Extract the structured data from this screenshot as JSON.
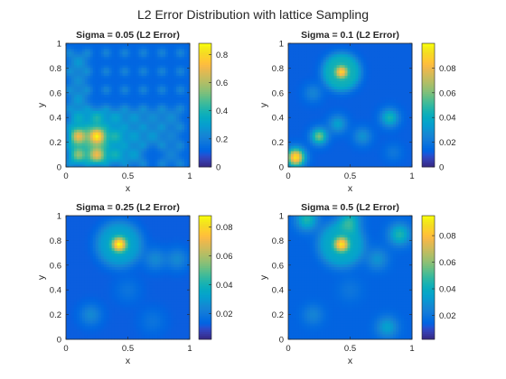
{
  "figure": {
    "title": "L2 Error Distribution with lattice Sampling"
  },
  "chart_data": [
    {
      "type": "heatmap",
      "title": "Sigma = 0.05 (L2 Error)",
      "xlabel": "x",
      "ylabel": "y",
      "xlim": [
        0,
        1
      ],
      "ylim": [
        0,
        1
      ],
      "x_ticks": [
        "0",
        "0.5",
        "1"
      ],
      "y_ticks": [
        "0",
        "0.2",
        "0.4",
        "0.6",
        "0.8",
        "1"
      ],
      "colorbar": {
        "min": 0,
        "max": 0.88,
        "ticks": [
          0,
          0.2,
          0.4,
          0.6,
          0.8
        ],
        "tick_labels": [
          "0",
          "0.2",
          "0.4",
          "0.6",
          "0.8"
        ]
      },
      "colormap": "parula",
      "background_value": 0.12,
      "features": [
        {
          "x": 0.1,
          "y": 0.25,
          "value": 0.7,
          "spread": 0.05
        },
        {
          "x": 0.25,
          "y": 0.25,
          "value": 0.85,
          "spread": 0.05
        },
        {
          "x": 0.1,
          "y": 0.1,
          "value": 0.55,
          "spread": 0.05
        },
        {
          "x": 0.25,
          "y": 0.1,
          "value": 0.7,
          "spread": 0.05
        },
        {
          "x": 0.1,
          "y": 0.4,
          "value": 0.35,
          "spread": 0.05
        },
        {
          "x": 0.25,
          "y": 0.4,
          "value": 0.4,
          "spread": 0.05
        },
        {
          "x": 0.4,
          "y": 0.25,
          "value": 0.4,
          "spread": 0.05
        },
        {
          "x": 0.4,
          "y": 0.1,
          "value": 0.38,
          "spread": 0.05
        },
        {
          "x": 0.55,
          "y": 0.25,
          "value": 0.3,
          "spread": 0.05
        },
        {
          "x": 0.55,
          "y": 0.1,
          "value": 0.3,
          "spread": 0.05
        },
        {
          "x": 0.7,
          "y": 0.25,
          "value": 0.28,
          "spread": 0.05
        },
        {
          "x": 0.7,
          "y": 0.4,
          "value": 0.25,
          "spread": 0.05
        },
        {
          "x": 0.85,
          "y": 0.4,
          "value": 0.25,
          "spread": 0.05
        },
        {
          "x": 0.55,
          "y": 0.4,
          "value": 0.28,
          "spread": 0.05
        },
        {
          "x": 0.4,
          "y": 0.4,
          "value": 0.32,
          "spread": 0.05
        },
        {
          "x": 0.1,
          "y": 0.55,
          "value": 0.28,
          "spread": 0.05
        },
        {
          "x": 0.1,
          "y": 0.85,
          "value": 0.28,
          "spread": 0.05
        },
        {
          "x": 0.1,
          "y": 0.7,
          "value": 0.25,
          "spread": 0.05
        },
        {
          "x": 0.85,
          "y": 0.25,
          "value": 0.22,
          "spread": 0.05
        },
        {
          "x": 0.85,
          "y": 0.1,
          "value": 0.22,
          "spread": 0.05
        }
      ],
      "lattice_spacing": 0.15,
      "lattice_value": 0.22
    },
    {
      "type": "heatmap",
      "title": "Sigma = 0.1 (L2 Error)",
      "xlabel": "x",
      "ylabel": "y",
      "xlim": [
        0,
        1
      ],
      "ylim": [
        0,
        1
      ],
      "x_ticks": [
        "0",
        "0.5",
        "1"
      ],
      "y_ticks": [
        "0",
        "0.2",
        "0.4",
        "0.6",
        "0.8",
        "1"
      ],
      "colorbar": {
        "min": 0,
        "max": 0.1,
        "ticks": [
          0,
          0.02,
          0.04,
          0.06,
          0.08
        ],
        "tick_labels": [
          "0",
          "0.02",
          "0.04",
          "0.06",
          "0.08"
        ]
      },
      "colormap": "parula",
      "background_value": 0.012,
      "features": [
        {
          "x": 0.06,
          "y": 0.08,
          "value": 0.095,
          "spread": 0.05
        },
        {
          "x": 0.43,
          "y": 0.77,
          "value": 0.09,
          "spread": 0.04
        },
        {
          "x": 0.25,
          "y": 0.25,
          "value": 0.06,
          "spread": 0.045
        },
        {
          "x": 0.4,
          "y": 0.35,
          "value": 0.035,
          "spread": 0.05
        },
        {
          "x": 0.82,
          "y": 0.4,
          "value": 0.045,
          "spread": 0.05
        },
        {
          "x": 0.6,
          "y": 0.25,
          "value": 0.03,
          "spread": 0.05
        },
        {
          "x": 0.2,
          "y": 0.6,
          "value": 0.025,
          "spread": 0.05
        },
        {
          "x": 0.85,
          "y": 0.12,
          "value": 0.02,
          "spread": 0.05
        }
      ],
      "ring": {
        "x": 0.43,
        "y": 0.77,
        "radius": 0.11,
        "value": 0.04,
        "width": 0.04
      }
    },
    {
      "type": "heatmap",
      "title": "Sigma = 0.25 (L2 Error)",
      "xlabel": "x",
      "ylabel": "y",
      "xlim": [
        0,
        1
      ],
      "ylim": [
        0,
        1
      ],
      "x_ticks": [
        "0",
        "0.5",
        "1"
      ],
      "y_ticks": [
        "0",
        "0.2",
        "0.4",
        "0.6",
        "0.8",
        "1"
      ],
      "colorbar": {
        "min": 0.002,
        "max": 0.088,
        "ticks": [
          0.02,
          0.04,
          0.06,
          0.08
        ],
        "tick_labels": [
          "0.02",
          "0.04",
          "0.06",
          "0.08"
        ]
      },
      "colormap": "parula",
      "background_value": 0.012,
      "features": [
        {
          "x": 0.43,
          "y": 0.77,
          "value": 0.088,
          "spread": 0.045
        },
        {
          "x": 0.72,
          "y": 0.65,
          "value": 0.025,
          "spread": 0.06
        },
        {
          "x": 0.9,
          "y": 0.65,
          "value": 0.025,
          "spread": 0.06
        },
        {
          "x": 0.2,
          "y": 0.2,
          "value": 0.025,
          "spread": 0.06
        },
        {
          "x": 0.5,
          "y": 0.4,
          "value": 0.018,
          "spread": 0.07
        },
        {
          "x": 0.7,
          "y": 0.15,
          "value": 0.018,
          "spread": 0.07
        }
      ],
      "ring": {
        "x": 0.43,
        "y": 0.77,
        "radius": 0.13,
        "value": 0.03,
        "width": 0.05
      }
    },
    {
      "type": "heatmap",
      "title": "Sigma = 0.5 (L2 Error)",
      "xlabel": "x",
      "ylabel": "y",
      "xlim": [
        0,
        1
      ],
      "ylim": [
        0,
        1
      ],
      "x_ticks": [
        "0",
        "0.5",
        "1"
      ],
      "y_ticks": [
        "0",
        "0.2",
        "0.4",
        "0.6",
        "0.8",
        "1"
      ],
      "colorbar": {
        "min": 0.002,
        "max": 0.095,
        "ticks": [
          0.02,
          0.04,
          0.06,
          0.08
        ],
        "tick_labels": [
          "0.02",
          "0.04",
          "0.06",
          "0.08"
        ]
      },
      "colormap": "parula",
      "background_value": 0.014,
      "features": [
        {
          "x": 0.43,
          "y": 0.77,
          "value": 0.09,
          "spread": 0.045
        },
        {
          "x": 0.15,
          "y": 0.97,
          "value": 0.045,
          "spread": 0.06
        },
        {
          "x": 0.5,
          "y": 0.97,
          "value": 0.04,
          "spread": 0.06
        },
        {
          "x": 0.9,
          "y": 0.85,
          "value": 0.045,
          "spread": 0.06
        },
        {
          "x": 0.72,
          "y": 0.65,
          "value": 0.03,
          "spread": 0.06
        },
        {
          "x": 0.8,
          "y": 0.1,
          "value": 0.035,
          "spread": 0.06
        },
        {
          "x": 0.2,
          "y": 0.2,
          "value": 0.025,
          "spread": 0.06
        },
        {
          "x": 0.5,
          "y": 0.4,
          "value": 0.02,
          "spread": 0.07
        }
      ],
      "ring": {
        "x": 0.43,
        "y": 0.77,
        "radius": 0.13,
        "value": 0.035,
        "width": 0.05
      }
    }
  ]
}
